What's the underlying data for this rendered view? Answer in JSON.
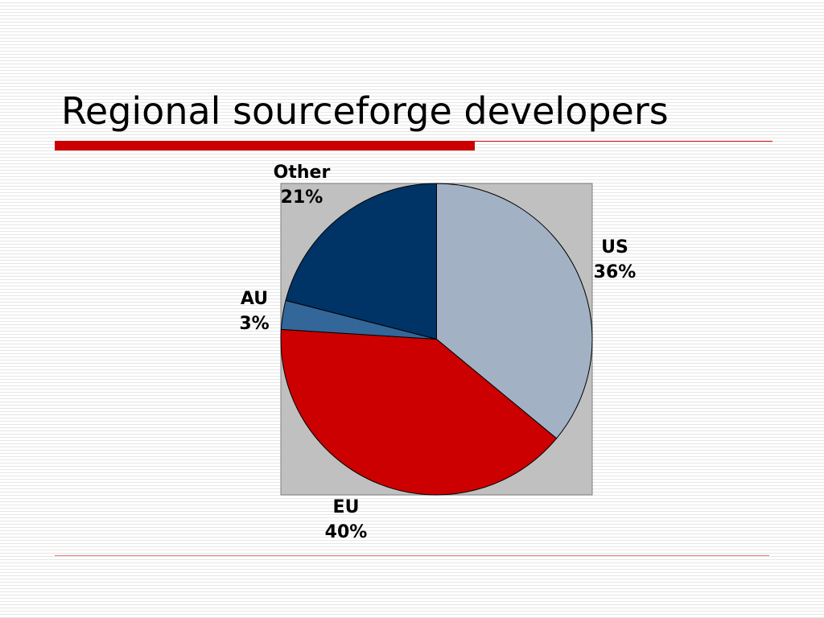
{
  "slide": {
    "title": "Regional sourceforge developers"
  },
  "colors": {
    "accent": "#cc0000",
    "plot_area": "#c0c0c0",
    "slice_outline": "#000000"
  },
  "chart_data": {
    "type": "pie",
    "title": "",
    "start_angle_deg": 0,
    "direction": "clockwise",
    "slices": [
      {
        "category": "US",
        "value": 36,
        "percent_label": "36%",
        "color": "#a2b2c4"
      },
      {
        "category": "EU",
        "value": 40,
        "percent_label": "40%",
        "color": "#cc0000"
      },
      {
        "category": "AU",
        "value": 3,
        "percent_label": "3%",
        "color": "#336699"
      },
      {
        "category": "Other",
        "value": 21,
        "percent_label": "21%",
        "color": "#003366"
      }
    ],
    "data_labels": "outside",
    "legend": "none"
  }
}
